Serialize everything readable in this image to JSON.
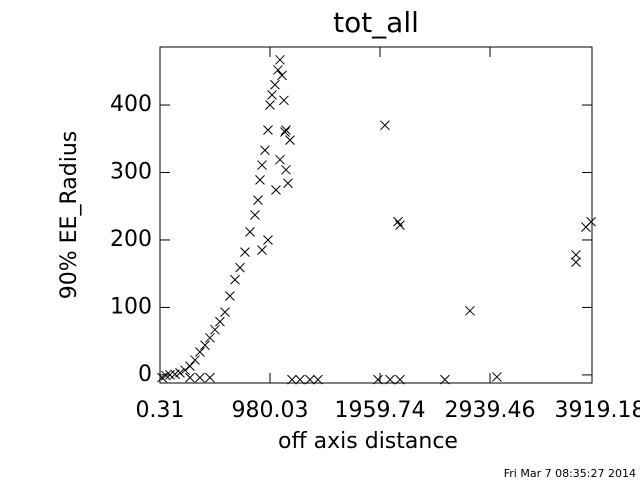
{
  "chart_data": {
    "type": "scatter",
    "title": "tot_all",
    "x_label": "off axis distance",
    "y_label": "90% EE_Radius",
    "marker": "x",
    "color": "#000000",
    "x": [
      18,
      53,
      89,
      134,
      178,
      223,
      267,
      312,
      356,
      401,
      445,
      490,
      534,
      579,
      623,
      668,
      713,
      757,
      802,
      846,
      873,
      891,
      909,
      935,
      962,
      980,
      998,
      1024,
      1051,
      1069,
      1087,
      1104,
      1122,
      1069,
      1122,
      1140,
      1033,
      962,
      909,
      267,
      356,
      445,
      1158,
      1113,
      1176,
      1247,
      1336,
      1407,
      1942,
      2049,
      2138,
      2538,
      2004,
      2120,
      2138,
      2761,
      3001,
      3705,
      3705,
      3794,
      3840
    ],
    "y": [
      -4,
      -1,
      0,
      1,
      3,
      7,
      13,
      22,
      34,
      44,
      55,
      67,
      79,
      93,
      117,
      141,
      159,
      182,
      212,
      237,
      259,
      289,
      311,
      333,
      363,
      400,
      415,
      430,
      452,
      467,
      444,
      407,
      363,
      319,
      304,
      284,
      274,
      200,
      185,
      -4,
      -4,
      -4,
      348,
      360,
      -7,
      -7,
      -7,
      -7,
      -7,
      -7,
      -7,
      -7,
      370,
      227,
      222,
      95,
      -3,
      167,
      178,
      219,
      227
    ],
    "xlim": [
      0.31,
      3848
    ],
    "ylim": [
      -12,
      486
    ],
    "xticks": [
      0.31,
      980.03,
      1959.74,
      2939.46,
      3919.18
    ],
    "yticks": [
      0,
      100,
      200,
      300,
      400
    ]
  },
  "footer": "Fri Mar  7 08:35:27 2014"
}
